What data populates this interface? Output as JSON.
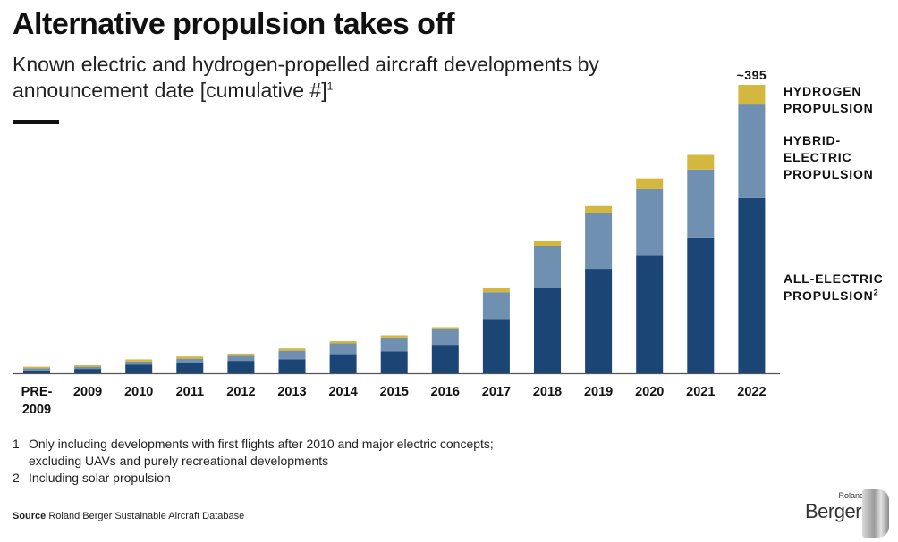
{
  "header": {
    "title": "Alternative propulsion takes off",
    "subtitle": "Known electric and hydrogen-propelled aircraft developments by announcement date [cumulative #]",
    "subtitle_sup": "1"
  },
  "legend": {
    "hydrogen": "HYDROGEN\nPROPULSION",
    "hybrid": "HYBRID-\nELECTRIC\nPROPULSION",
    "electric": "ALL-ELECTRIC\nPROPULSION",
    "electric_sup": "2"
  },
  "footnotes": [
    {
      "num": "1",
      "text": "Only including developments with first flights after 2010 and major electric concepts;\nexcluding UAVs and purely recreational developments"
    },
    {
      "num": "2",
      "text": "Including solar propulsion"
    }
  ],
  "source": {
    "label": "Source",
    "text": "Roland Berger Sustainable Aircraft Database"
  },
  "logo": {
    "small": "Roland",
    "big": "Berger"
  },
  "colors": {
    "electric": "#1b4575",
    "hybrid": "#7090b2",
    "hydrogen": "#d4b73e",
    "axis": "#555555"
  },
  "chart_data": {
    "type": "bar",
    "stacked": true,
    "title": "Alternative propulsion takes off",
    "categories": [
      "PRE-2009",
      "2009",
      "2010",
      "2011",
      "2012",
      "2013",
      "2014",
      "2015",
      "2016",
      "2017",
      "2018",
      "2019",
      "2020",
      "2021",
      "2022"
    ],
    "category_labels": [
      [
        "PRE-",
        "2009"
      ],
      [
        "2009"
      ],
      [
        "2010"
      ],
      [
        "2011"
      ],
      [
        "2012"
      ],
      [
        "2013"
      ],
      [
        "2014"
      ],
      [
        "2015"
      ],
      [
        "2016"
      ],
      [
        "2017"
      ],
      [
        "2018"
      ],
      [
        "2019"
      ],
      [
        "2020"
      ],
      [
        "2021"
      ],
      [
        "2022"
      ]
    ],
    "series": [
      {
        "name": "ALL-ELECTRIC PROPULSION",
        "values": [
          4,
          6,
          12,
          14,
          17,
          19,
          25,
          30,
          39,
          74,
          117,
          143,
          161,
          186,
          240
        ]
      },
      {
        "name": "HYBRID-ELECTRIC PROPULSION",
        "values": [
          3,
          3,
          4,
          6,
          7,
          12,
          16,
          19,
          21,
          37,
          57,
          77,
          91,
          93,
          128
        ]
      },
      {
        "name": "HYDROGEN PROPULSION",
        "values": [
          2,
          2,
          3,
          3,
          3,
          3,
          3,
          3,
          3,
          6,
          7,
          9,
          15,
          20,
          27
        ]
      }
    ],
    "annotations": [
      {
        "category": "2022",
        "text": "~395"
      }
    ],
    "ylim": [
      0,
      400
    ],
    "xlabel": "",
    "ylabel": ""
  }
}
